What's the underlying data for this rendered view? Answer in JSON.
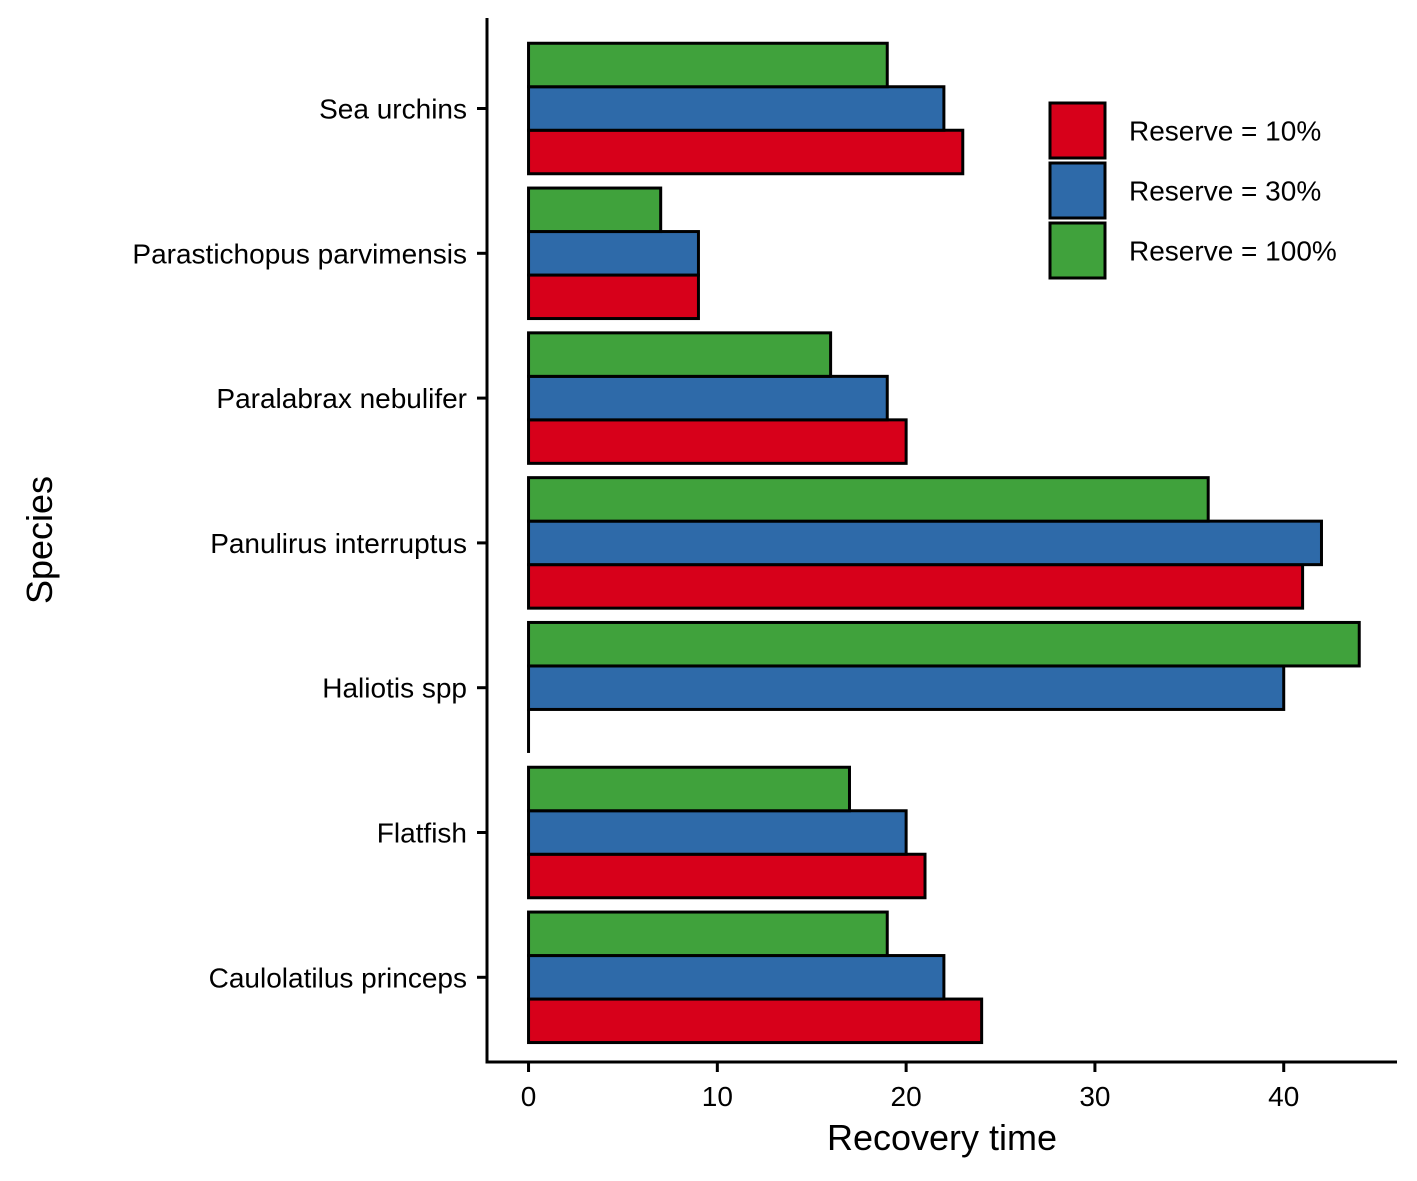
{
  "chart_data": {
    "type": "bar",
    "orientation": "horizontal",
    "title": "",
    "xlabel": "Recovery time",
    "ylabel": "Species",
    "categories": [
      "Sea urchins",
      "Parastichopus parvimensis",
      "Paralabrax nebulifer",
      "Panulirus interruptus",
      "Haliotis spp",
      "Flatfish",
      "Caulolatilus princeps"
    ],
    "series": [
      {
        "name": "Reserve = 10%",
        "color": "#d7001a",
        "values": [
          23,
          9,
          20,
          41,
          0,
          21,
          24
        ]
      },
      {
        "name": "Reserve = 30%",
        "color": "#2e6aa9",
        "values": [
          22,
          9,
          19,
          42,
          40,
          20,
          22
        ]
      },
      {
        "name": "Reserve = 100%",
        "color": "#40a23c",
        "values": [
          19,
          7,
          16,
          36,
          44,
          17,
          19
        ]
      }
    ],
    "xlim": [
      -2.2,
      46
    ],
    "xticks": [
      "0",
      "10",
      "20",
      "30",
      "40"
    ],
    "grid": false,
    "legend_position": "top-right"
  }
}
